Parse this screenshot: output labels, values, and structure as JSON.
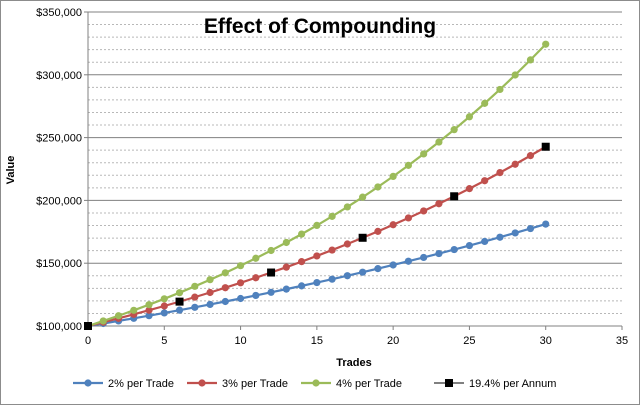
{
  "chart_data": {
    "type": "line",
    "title": "Effect of Compounding",
    "xlabel": "Trades",
    "ylabel": "Value",
    "xlim": [
      0,
      35
    ],
    "ylim": [
      100000,
      350000
    ],
    "xticks": [
      0,
      5,
      10,
      15,
      20,
      25,
      30,
      35
    ],
    "yticks": [
      100000,
      150000,
      200000,
      250000,
      300000,
      350000
    ],
    "ytick_labels": [
      "$100,000",
      "$150,000",
      "$200,000",
      "$250,000",
      "$300,000",
      "$350,000"
    ],
    "grid": "horizontal",
    "legend": "bottom",
    "series": [
      {
        "name": "2% per Trade",
        "color": "#4f81bd",
        "marker": "circle",
        "x": [
          0,
          1,
          2,
          3,
          4,
          5,
          6,
          7,
          8,
          9,
          10,
          11,
          12,
          13,
          14,
          15,
          16,
          17,
          18,
          19,
          20,
          21,
          22,
          23,
          24,
          25,
          26,
          27,
          28,
          29,
          30
        ],
        "values": [
          100000,
          102000,
          104040,
          106121,
          108243,
          110408,
          112616,
          114869,
          117166,
          119509,
          121899,
          124337,
          126824,
          129361,
          131948,
          134587,
          137279,
          140024,
          142825,
          145681,
          148595,
          151567,
          154598,
          157690,
          160844,
          164061,
          167342,
          170689,
          174102,
          177584,
          181136
        ]
      },
      {
        "name": "3% per Trade",
        "color": "#c0504d",
        "marker": "circle",
        "x": [
          0,
          1,
          2,
          3,
          4,
          5,
          6,
          7,
          8,
          9,
          10,
          11,
          12,
          13,
          14,
          15,
          16,
          17,
          18,
          19,
          20,
          21,
          22,
          23,
          24,
          25,
          26,
          27,
          28,
          29,
          30
        ],
        "values": [
          100000,
          103000,
          106090,
          109273,
          112551,
          115927,
          119405,
          122987,
          126677,
          130477,
          134392,
          138423,
          142576,
          146853,
          151259,
          155797,
          160471,
          165285,
          170243,
          175351,
          180611,
          186029,
          191610,
          197359,
          203279,
          209378,
          215659,
          222129,
          228793,
          235657,
          242726
        ]
      },
      {
        "name": "4% per Trade",
        "color": "#9bbb59",
        "marker": "circle",
        "x": [
          0,
          1,
          2,
          3,
          4,
          5,
          6,
          7,
          8,
          9,
          10,
          11,
          12,
          13,
          14,
          15,
          16,
          17,
          18,
          19,
          20,
          21,
          22,
          23,
          24,
          25,
          26,
          27,
          28,
          29,
          30
        ],
        "values": [
          100000,
          104000,
          108160,
          112486,
          116986,
          121665,
          126532,
          131593,
          136857,
          142331,
          148024,
          153945,
          160103,
          166507,
          173168,
          180094,
          187298,
          194790,
          202582,
          210685,
          219112,
          227877,
          236992,
          246472,
          256330,
          266584,
          277247,
          288337,
          299870,
          311865,
          324340
        ]
      },
      {
        "name": "19.4% per Annum",
        "color": "#000000",
        "marker": "square",
        "x": [
          0,
          6,
          12,
          18,
          24,
          30
        ],
        "values": [
          100000,
          119405,
          142576,
          170243,
          203279,
          242726
        ]
      }
    ]
  }
}
